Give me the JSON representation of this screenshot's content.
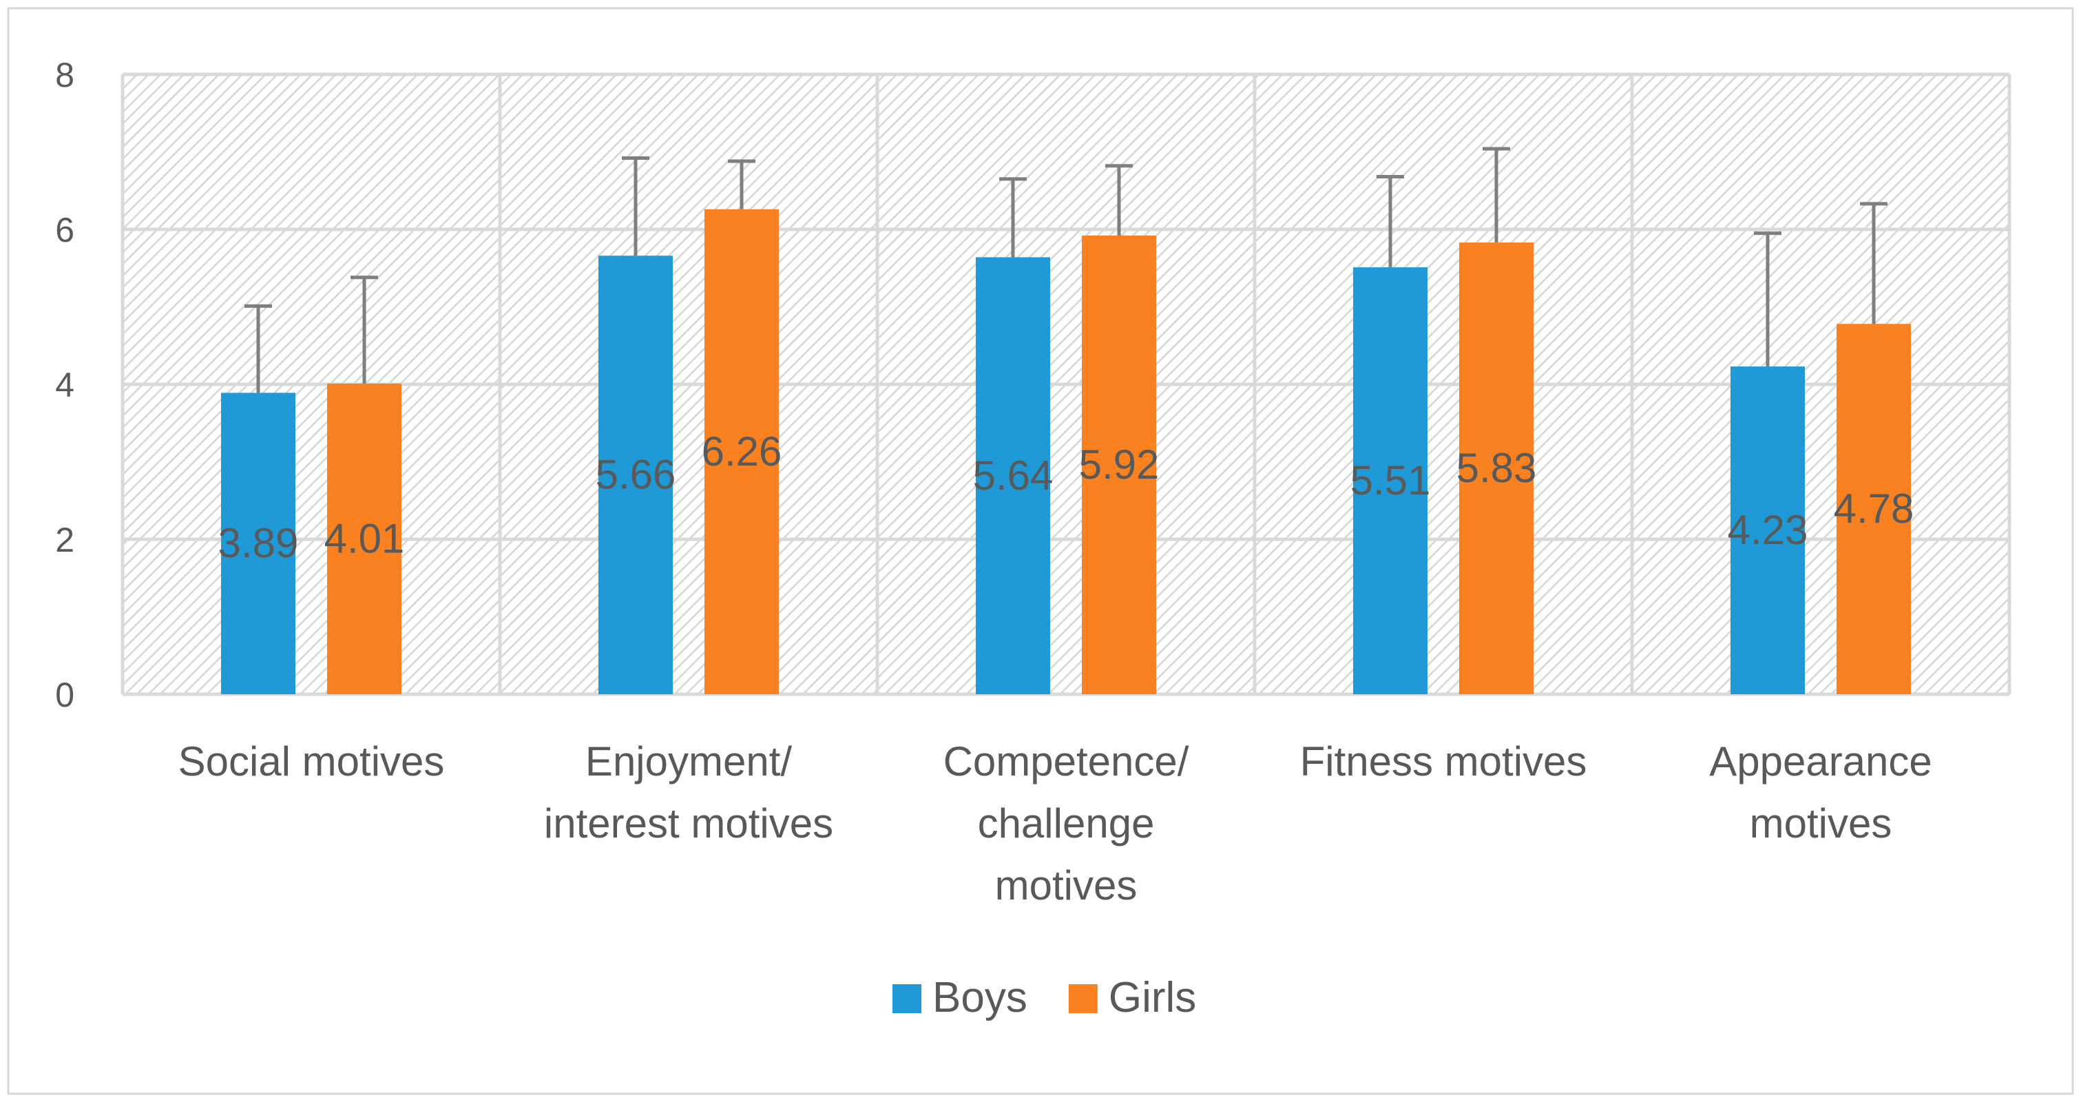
{
  "chart_data": {
    "type": "bar",
    "title": "",
    "xlabel": "",
    "ylabel": "",
    "ylim": [
      0,
      8
    ],
    "yticks": [
      0,
      2,
      4,
      6,
      8
    ],
    "grid": true,
    "legend_position": "bottom-center",
    "categories": [
      [
        "Social motives"
      ],
      [
        "Enjoyment/",
        "interest motives"
      ],
      [
        "Competence/",
        "challenge",
        "motives"
      ],
      [
        "Fitness motives"
      ],
      [
        "Appearance",
        "motives"
      ]
    ],
    "series": [
      {
        "name": "Boys",
        "color": "#1F9AD6",
        "values": [
          3.89,
          5.66,
          5.64,
          5.51,
          4.23
        ],
        "labels": [
          "3.89",
          "5.66",
          "5.64",
          "5.51",
          "4.23"
        ],
        "error_upper": [
          1.12,
          1.26,
          1.01,
          1.17,
          1.72
        ]
      },
      {
        "name": "Girls",
        "color": "#F98120",
        "values": [
          4.01,
          6.26,
          5.92,
          5.83,
          4.78
        ],
        "labels": [
          "4.01",
          "6.26",
          "5.92",
          "5.83",
          "4.78"
        ],
        "error_upper": [
          1.37,
          0.62,
          0.9,
          1.21,
          1.55
        ]
      }
    ]
  }
}
